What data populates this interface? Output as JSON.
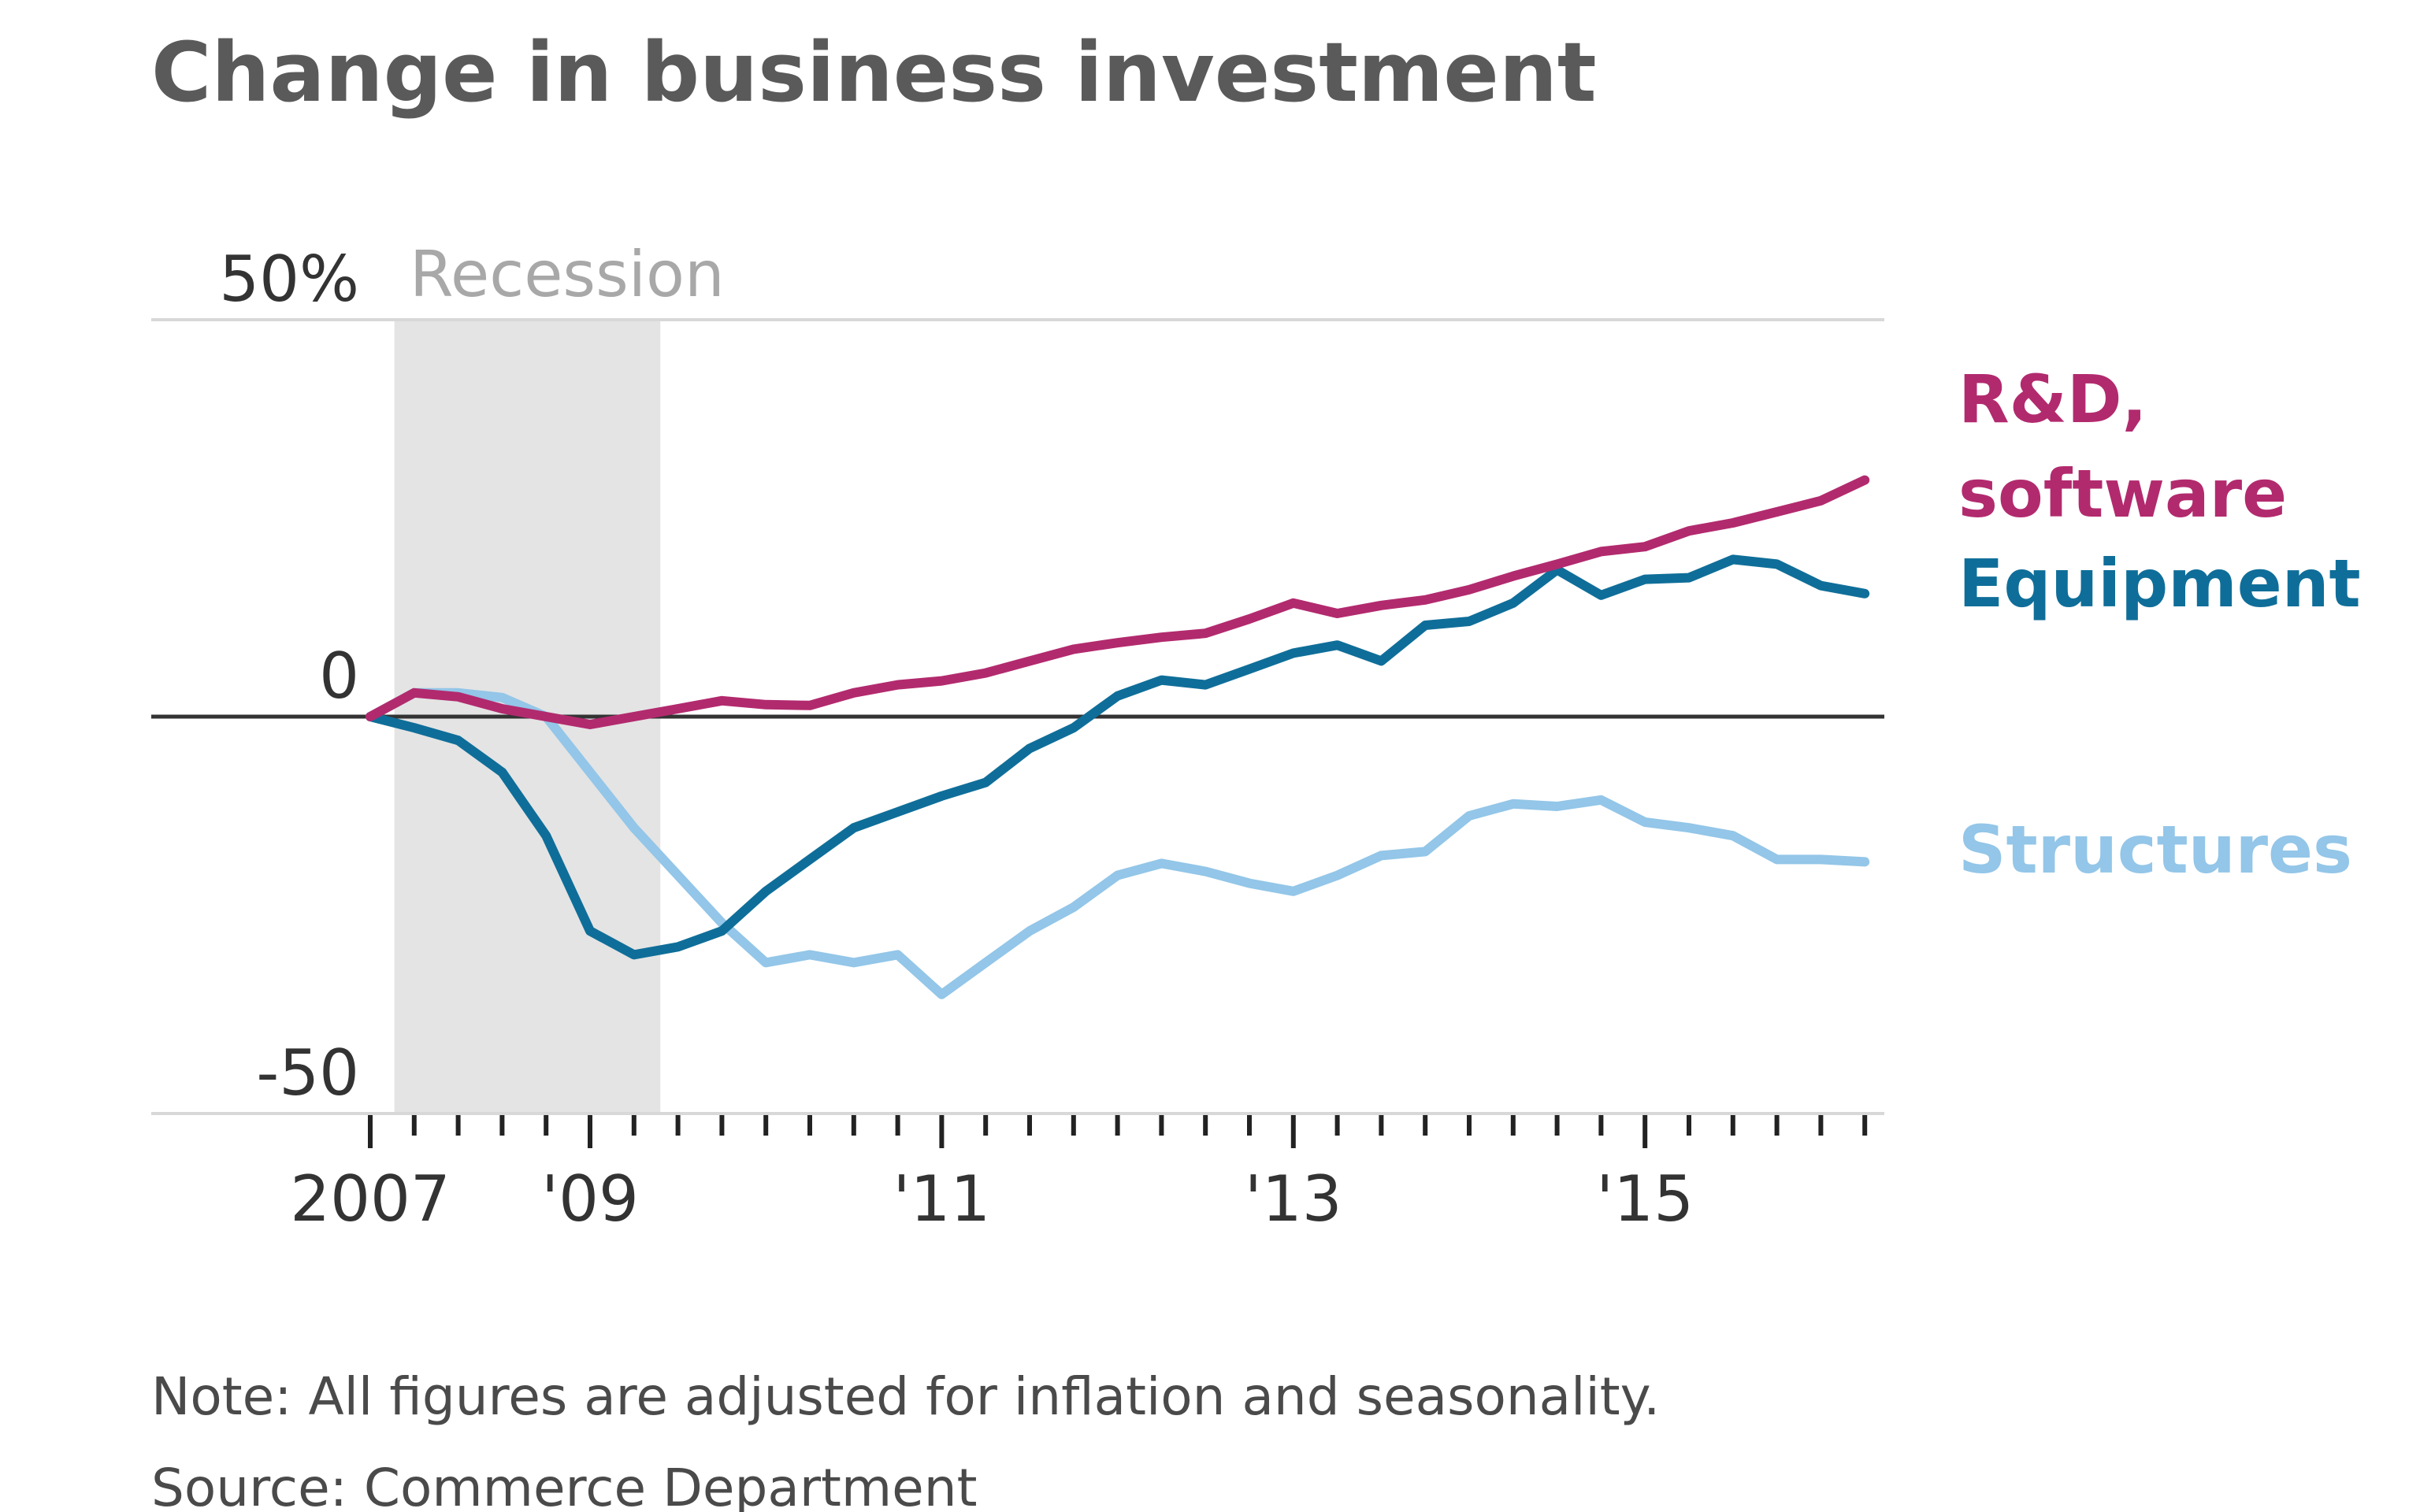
{
  "chart_data": {
    "type": "line",
    "title": "Change in business investment",
    "xlabel": "",
    "ylabel": "",
    "ylim": [
      -50,
      50
    ],
    "yticks": [
      {
        "value": 50,
        "label": "50%"
      },
      {
        "value": 0,
        "label": "0"
      },
      {
        "value": -50,
        "label": "-50"
      }
    ],
    "xticks": [
      {
        "x": "2007-Q4",
        "label": "2007"
      },
      {
        "x": "2009-Q1",
        "label": "'09"
      },
      {
        "x": "2011-Q1",
        "label": "'11"
      },
      {
        "x": "2013-Q1",
        "label": "'13"
      },
      {
        "x": "2015-Q1",
        "label": "'15"
      }
    ],
    "grid": false,
    "legend": "direct labels at right end of lines",
    "recession": {
      "label": "Recession",
      "start": "2008-Q1",
      "end": "2009-Q2",
      "color": "#e4e4e4"
    },
    "x": [
      "2007-Q4",
      "2008-Q1",
      "2008-Q2",
      "2008-Q3",
      "2008-Q4",
      "2009-Q1",
      "2009-Q2",
      "2009-Q3",
      "2009-Q4",
      "2010-Q1",
      "2010-Q2",
      "2010-Q3",
      "2010-Q4",
      "2011-Q1",
      "2011-Q2",
      "2011-Q3",
      "2011-Q4",
      "2012-Q1",
      "2012-Q2",
      "2012-Q3",
      "2012-Q4",
      "2013-Q1",
      "2013-Q2",
      "2013-Q3",
      "2013-Q4",
      "2014-Q1",
      "2014-Q2",
      "2014-Q3",
      "2014-Q4",
      "2015-Q1",
      "2015-Q2",
      "2015-Q3",
      "2015-Q4",
      "2016-Q1",
      "2016-Q2"
    ],
    "series": [
      {
        "name": "R&D, software",
        "label_lines": [
          "R&D,",
          "software"
        ],
        "color": "#b22a6e",
        "values": [
          0,
          3,
          2.5,
          1,
          0,
          -1,
          0,
          1,
          2,
          1.5,
          1.4,
          3,
          4,
          4.5,
          5.5,
          7,
          8.5,
          9.3,
          10,
          10.5,
          12.3,
          14.3,
          13,
          14,
          14.7,
          16,
          17.7,
          19.2,
          20.8,
          21.4,
          23.4,
          24.4,
          25.8,
          27.2,
          29.8
        ]
      },
      {
        "name": "Equipment",
        "label_lines": [
          "Equipment"
        ],
        "color": "#0f6e99",
        "values": [
          0,
          -1.4,
          -3,
          -7,
          -15,
          -27,
          -30,
          -29,
          -27,
          -22,
          -18,
          -14,
          -12,
          -10,
          -8.3,
          -4,
          -1.4,
          2.6,
          4.6,
          4,
          6,
          8,
          9,
          7,
          11.5,
          12,
          14.3,
          18.5,
          15.3,
          17.3,
          17.5,
          19.8,
          19.2,
          16.5,
          15.5
        ]
      },
      {
        "name": "Structures",
        "label_lines": [
          "Structures"
        ],
        "color": "#93c6e8",
        "values": [
          0,
          3,
          3,
          2.4,
          0,
          -7,
          -14,
          -20,
          -26,
          -31,
          -30,
          -31,
          -30,
          -35,
          -31,
          -27,
          -24,
          -20,
          -18.5,
          -19.5,
          -21,
          -22,
          -20,
          -17.5,
          -17,
          -12.5,
          -11,
          -11.3,
          -10.5,
          -13.3,
          -14,
          -15,
          -18,
          -18,
          -18.3
        ]
      }
    ],
    "notes": [
      "Note: All figures are adjusted for inflation and seasonality.",
      "Source: Commerce Department"
    ]
  }
}
